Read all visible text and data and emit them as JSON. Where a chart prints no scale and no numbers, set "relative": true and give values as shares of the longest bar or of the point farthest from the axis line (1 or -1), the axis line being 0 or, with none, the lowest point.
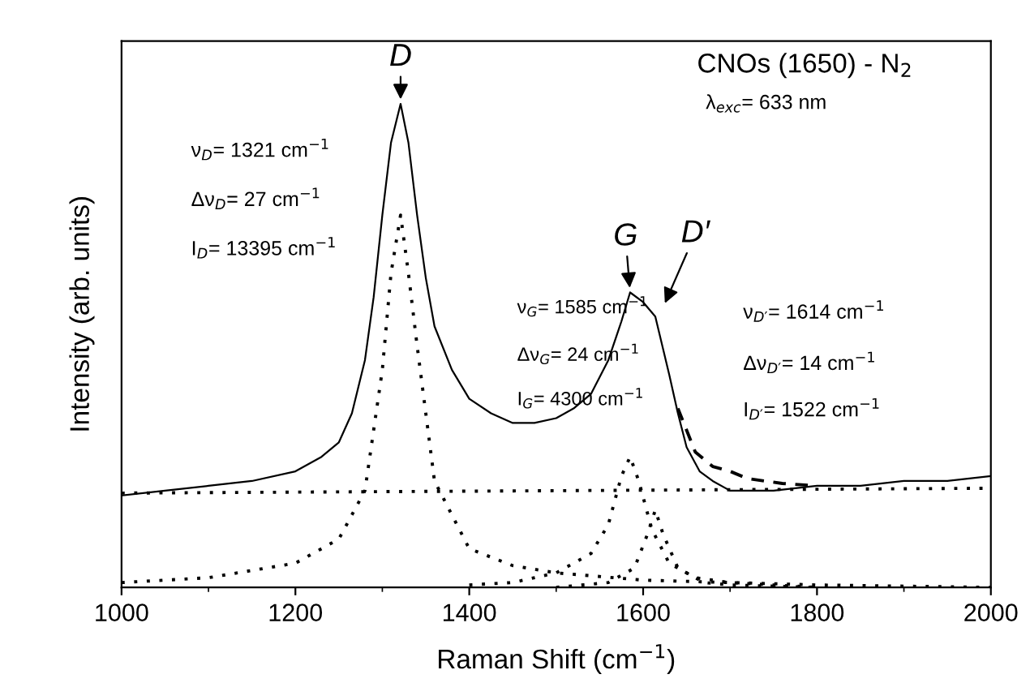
{
  "chart_data": {
    "type": "line",
    "relative": true,
    "xlabel": "Raman Shift (cm$^{−1}$)",
    "ylabel": "Intensity (arb. units)",
    "xlim": [
      1000,
      2000
    ],
    "xticks": [
      1000,
      1200,
      1400,
      1600,
      1800,
      2000
    ],
    "grid": false,
    "legend": false,
    "tick_labels": "x",
    "series": [
      {
        "color": "#000000",
        "line_style": "solid",
        "x": [
          1000,
          1050,
          1100,
          1150,
          1200,
          1230,
          1250,
          1265,
          1280,
          1290,
          1300,
          1310,
          1321,
          1330,
          1340,
          1350,
          1360,
          1380,
          1400,
          1425,
          1450,
          1475,
          1500,
          1520,
          1540,
          1560,
          1575,
          1585,
          1600,
          1614,
          1622,
          1630,
          1640,
          1650,
          1665,
          1680,
          1700,
          1750,
          1800,
          1850,
          1900,
          1950,
          2000
        ],
        "values": [
          0.19,
          0.2,
          0.21,
          0.22,
          0.24,
          0.27,
          0.3,
          0.36,
          0.47,
          0.6,
          0.77,
          0.92,
          1.0,
          0.92,
          0.77,
          0.64,
          0.54,
          0.45,
          0.39,
          0.36,
          0.34,
          0.34,
          0.35,
          0.37,
          0.4,
          0.47,
          0.55,
          0.61,
          0.59,
          0.56,
          0.5,
          0.44,
          0.36,
          0.29,
          0.24,
          0.22,
          0.2,
          0.2,
          0.21,
          0.21,
          0.22,
          0.22,
          0.23
        ]
      },
      {
        "color": "#000000",
        "line_style": "dashed",
        "x": [
          1640,
          1660,
          1680,
          1700,
          1720,
          1760,
          1800
        ],
        "values": [
          0.37,
          0.28,
          0.25,
          0.24,
          0.225,
          0.215,
          0.21
        ]
      },
      {
        "color": "#000000",
        "line_style": "dotted",
        "x": [
          1000,
          2000
        ],
        "values": [
          0.195,
          0.205
        ]
      },
      {
        "color": "#000000",
        "line_style": "dotted",
        "x": [
          1000,
          1100,
          1200,
          1250,
          1280,
          1300,
          1310,
          1321,
          1330,
          1340,
          1360,
          1400,
          1450,
          1500,
          1600,
          1700,
          1800,
          2000
        ],
        "values": [
          0.01,
          0.02,
          0.05,
          0.1,
          0.2,
          0.45,
          0.65,
          0.77,
          0.65,
          0.5,
          0.22,
          0.08,
          0.045,
          0.03,
          0.015,
          0.01,
          0.005,
          0.0
        ]
      },
      {
        "color": "#000000",
        "line_style": "dotted",
        "x": [
          1400,
          1450,
          1500,
          1540,
          1560,
          1575,
          1585,
          1595,
          1610,
          1630,
          1660,
          1700,
          1750,
          1800
        ],
        "values": [
          0.005,
          0.01,
          0.03,
          0.07,
          0.13,
          0.23,
          0.27,
          0.22,
          0.12,
          0.05,
          0.02,
          0.01,
          0.005,
          0.0
        ]
      },
      {
        "color": "#000000",
        "line_style": "dotted",
        "x": [
          1500,
          1560,
          1590,
          1605,
          1614,
          1623,
          1640,
          1670,
          1700,
          1800
        ],
        "values": [
          0.0,
          0.01,
          0.04,
          0.11,
          0.16,
          0.11,
          0.04,
          0.01,
          0.005,
          0.0
        ]
      }
    ],
    "annotations": [
      "CNOs (1650) - N$_{2}$",
      "λ$_{exc}$= 633 nm",
      "ν$_{D}$= 1321 cm$^{−1}$",
      "Δν$_{D}$= 27 cm$^{−1}$",
      "I$_{D}$= 13395 cm$^{−1}$",
      "ν$_{G}$= 1585 cm$^{−1}$",
      "Δν$_{G}$= 24 cm$^{−1}$",
      "I$_{G}$= 4300 cm$^{−1}$",
      "ν$_{D′}$= 1614 cm$^{−1}$",
      "Δν$_{D′}$= 14 cm$^{−1}$",
      "I$_{D′}$= 1522 cm$^{−1}$",
      {
        "text": "D",
        "x": 1321,
        "y": 1.0
      },
      {
        "text": "G",
        "x": 1585,
        "y": 0.61
      },
      "D′"
    ]
  }
}
